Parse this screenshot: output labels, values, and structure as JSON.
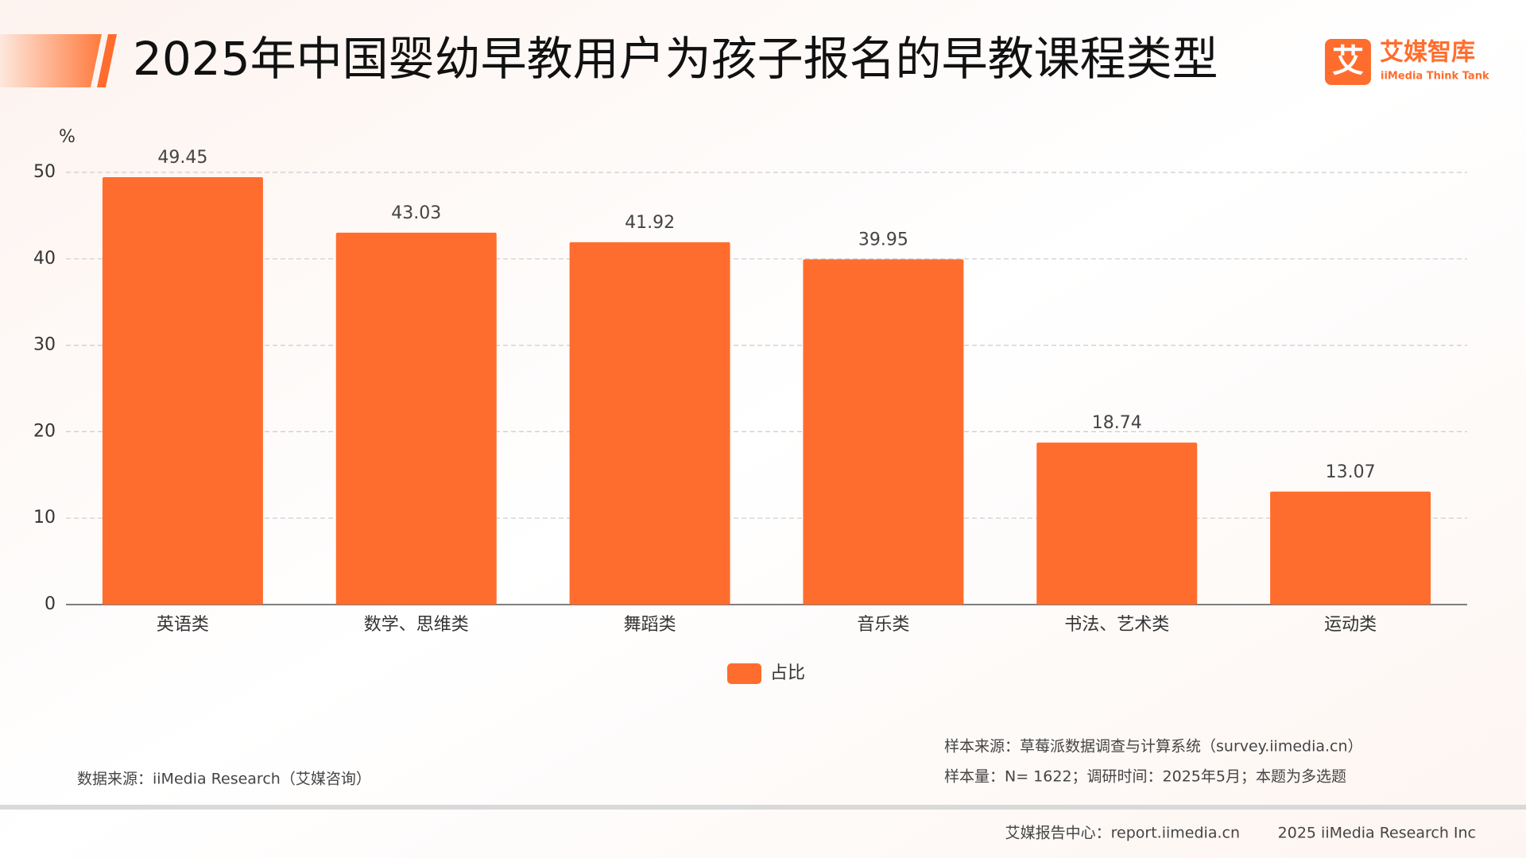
{
  "chart_data": {
    "type": "bar",
    "title": "2025年中国婴幼早教用户为孩子报名的早教课程类型",
    "y_unit": "%",
    "categories": [
      "英语类",
      "数学、思维类",
      "舞蹈类",
      "音乐类",
      "书法、艺术类",
      "运动类"
    ],
    "series": [
      {
        "name": "占比",
        "color": "#ff6d2e",
        "values": [
          49.45,
          43.03,
          41.92,
          39.95,
          18.74,
          13.07
        ]
      }
    ],
    "ylim": [
      0,
      50
    ],
    "yticks": [
      0,
      10,
      20,
      30,
      40,
      50
    ],
    "grid": true,
    "legend": "bottom"
  },
  "logo": {
    "icon": "艾",
    "name": "艾媒智库",
    "subtitle": "iiMedia Think Tank"
  },
  "notes": {
    "sample_source": "样本来源：草莓派数据调查与计算系统（survey.iimedia.cn）",
    "sample_size": "样本量：N= 1622；调研时间：2025年5月；本题为多选题",
    "data_source": "数据来源：iiMedia Research（艾媒咨询）"
  },
  "footer": {
    "center": "艾媒报告中心：report.iimedia.cn",
    "copyright": "2025 iiMedia Research Inc"
  }
}
